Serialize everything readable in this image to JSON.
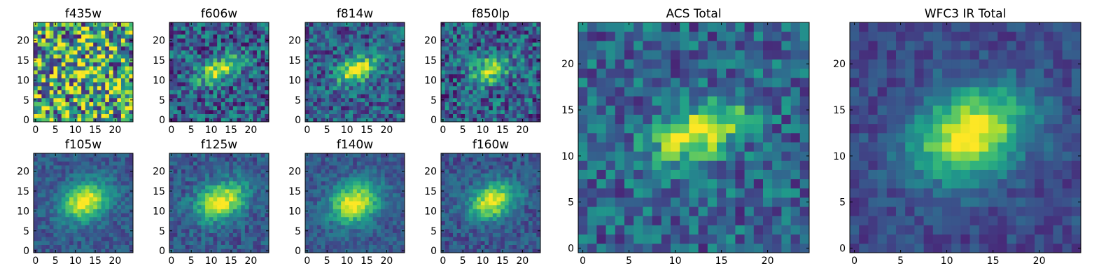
{
  "chart_data": {
    "type": "heatmap",
    "colormap": "viridis",
    "grid_size": 25,
    "xlim": [
      -0.5,
      24.5
    ],
    "ylim": [
      -0.5,
      24.5
    ],
    "panels": [
      {
        "name": "f435w",
        "title": "f435w",
        "xticks": [
          0,
          5,
          10,
          15,
          20
        ],
        "yticks": [
          0,
          5,
          10,
          15,
          20
        ],
        "source": {
          "cx": 12.5,
          "cy": 12.5,
          "sigma_x": 2.0,
          "sigma_y": 1.5,
          "angle_deg": 20,
          "amplitude": 0.25,
          "background": 0.62,
          "noise": 0.55,
          "seed": 11
        }
      },
      {
        "name": "f606w",
        "title": "f606w",
        "xticks": [
          0,
          5,
          10,
          15,
          20
        ],
        "yticks": [
          0,
          5,
          10,
          15,
          20
        ],
        "source": {
          "cx": 12.0,
          "cy": 12.5,
          "sigma_x": 4.0,
          "sigma_y": 1.8,
          "angle_deg": 25,
          "amplitude": 0.62,
          "background": 0.3,
          "noise": 0.28,
          "seed": 23
        }
      },
      {
        "name": "f814w",
        "title": "f814w",
        "xticks": [
          0,
          5,
          10,
          15,
          20
        ],
        "yticks": [
          0,
          5,
          10,
          15,
          20
        ],
        "source": {
          "cx": 12.5,
          "cy": 12.5,
          "sigma_x": 3.5,
          "sigma_y": 2.0,
          "angle_deg": 25,
          "amplitude": 0.7,
          "background": 0.3,
          "noise": 0.24,
          "seed": 37
        }
      },
      {
        "name": "f850lp",
        "title": "f850lp",
        "xticks": [
          0,
          5,
          10,
          15,
          20
        ],
        "yticks": [
          0,
          5,
          10,
          15,
          20
        ],
        "source": {
          "cx": 12.0,
          "cy": 12.5,
          "sigma_x": 3.5,
          "sigma_y": 2.0,
          "angle_deg": 25,
          "amplitude": 0.62,
          "background": 0.3,
          "noise": 0.28,
          "seed": 41
        }
      },
      {
        "name": "f105w",
        "title": "f105w",
        "xticks": [
          0,
          5,
          10,
          15,
          20
        ],
        "yticks": [
          0,
          5,
          10,
          15,
          20
        ],
        "source": {
          "cx": 12.5,
          "cy": 12.5,
          "sigma_x": 4.2,
          "sigma_y": 3.2,
          "angle_deg": 25,
          "amplitude": 0.72,
          "background": 0.28,
          "noise": 0.12,
          "seed": 53
        }
      },
      {
        "name": "f125w",
        "title": "f125w",
        "xticks": [
          0,
          5,
          10,
          15,
          20
        ],
        "yticks": [
          0,
          5,
          10,
          15,
          20
        ],
        "source": {
          "cx": 12.5,
          "cy": 12.5,
          "sigma_x": 4.5,
          "sigma_y": 3.0,
          "angle_deg": 25,
          "amplitude": 0.72,
          "background": 0.28,
          "noise": 0.14,
          "seed": 67
        }
      },
      {
        "name": "f140w",
        "title": "f140w",
        "xticks": [
          0,
          5,
          10,
          15,
          20
        ],
        "yticks": [
          0,
          5,
          10,
          15,
          20
        ],
        "source": {
          "cx": 12.0,
          "cy": 12.0,
          "sigma_x": 4.3,
          "sigma_y": 3.3,
          "angle_deg": 25,
          "amplitude": 0.72,
          "background": 0.28,
          "noise": 0.12,
          "seed": 71
        }
      },
      {
        "name": "f160w",
        "title": "f160w",
        "xticks": [
          0,
          5,
          10,
          15,
          20
        ],
        "yticks": [
          0,
          5,
          10,
          15,
          20
        ],
        "source": {
          "cx": 12.5,
          "cy": 12.5,
          "sigma_x": 4.2,
          "sigma_y": 3.0,
          "angle_deg": 25,
          "amplitude": 0.72,
          "background": 0.26,
          "noise": 0.14,
          "seed": 83
        }
      },
      {
        "name": "acs-total",
        "title": "ACS Total",
        "xticks": [
          0,
          5,
          10,
          15,
          20
        ],
        "yticks": [
          0,
          5,
          10,
          15,
          20
        ],
        "source": {
          "cx": 12.5,
          "cy": 12.5,
          "sigma_x": 3.8,
          "sigma_y": 2.0,
          "angle_deg": 25,
          "amplitude": 0.65,
          "background": 0.32,
          "noise": 0.22,
          "seed": 97
        }
      },
      {
        "name": "wfc3-ir-total",
        "title": "WFC3 IR Total",
        "xticks": [
          0,
          5,
          10,
          15,
          20
        ],
        "yticks": [
          0,
          5,
          10,
          15,
          20
        ],
        "source": {
          "cx": 12.5,
          "cy": 12.5,
          "sigma_x": 4.5,
          "sigma_y": 3.2,
          "angle_deg": 25,
          "amplitude": 0.78,
          "background": 0.22,
          "noise": 0.11,
          "seed": 101
        }
      }
    ]
  }
}
